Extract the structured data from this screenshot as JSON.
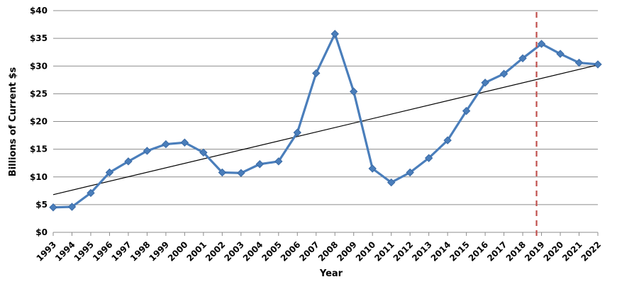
{
  "chart_data": {
    "type": "line",
    "title": "",
    "xlabel": "Year",
    "ylabel": "Billions of Current $s",
    "ylim": [
      0,
      40
    ],
    "y_ticks": [
      0,
      5,
      10,
      15,
      20,
      25,
      30,
      35,
      40
    ],
    "y_tick_labels": [
      "$0",
      "$5",
      "$10",
      "$15",
      "$20",
      "$25",
      "$30",
      "$35",
      "$40"
    ],
    "grid": "horizontal",
    "categories": [
      "1993",
      "1994",
      "1995",
      "1996",
      "1997",
      "1998",
      "1999",
      "2000",
      "2001",
      "2002",
      "2003",
      "2004",
      "2005",
      "2006",
      "2007",
      "2008",
      "2009",
      "2010",
      "2011",
      "2012",
      "2013",
      "2014",
      "2015",
      "2016",
      "2017",
      "2018",
      "2019",
      "2020",
      "2021",
      "2022"
    ],
    "series": [
      {
        "values": [
          4.5,
          4.6,
          7.1,
          10.8,
          12.8,
          14.7,
          15.9,
          16.2,
          14.4,
          10.8,
          10.7,
          12.3,
          12.8,
          18.0,
          28.7,
          35.8,
          25.4,
          11.5,
          9.0,
          10.8,
          13.4,
          16.6,
          21.9,
          27.0,
          28.6,
          31.4,
          34.0,
          32.2,
          30.6,
          30.3
        ],
        "color": "#4a7ebb",
        "marker": "diamond"
      }
    ],
    "trendline": {
      "from": [
        "1993",
        6.8
      ],
      "to": [
        "2022",
        30.2
      ],
      "color": "#000000"
    },
    "reference_line": {
      "x": "2019",
      "style": "dashed",
      "color": "#c0504d"
    }
  }
}
